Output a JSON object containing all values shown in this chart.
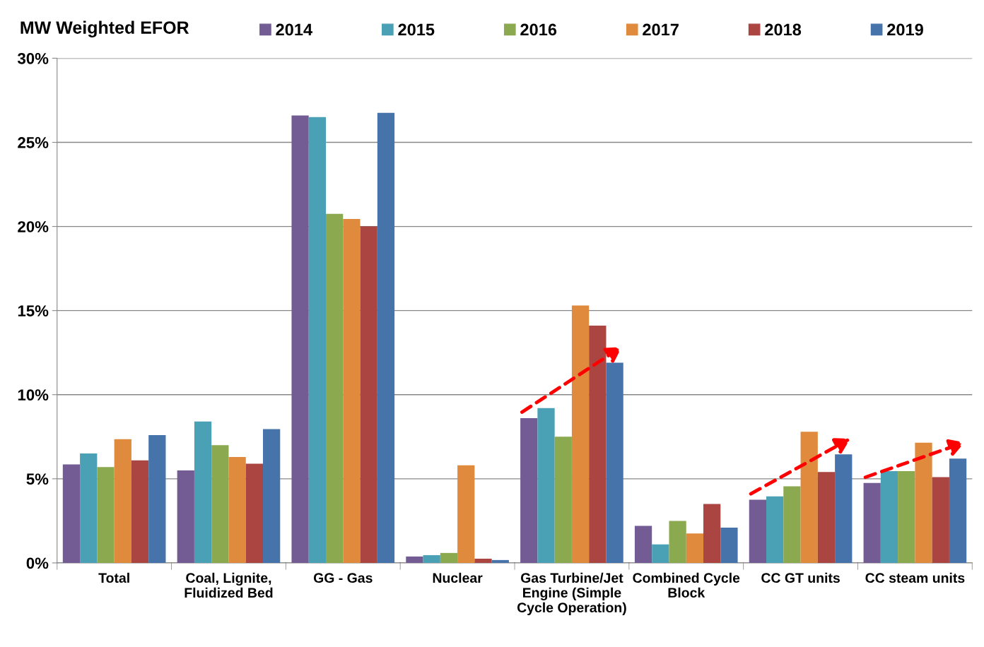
{
  "chart_data": {
    "type": "bar",
    "title": "MW Weighted EFOR",
    "categories": [
      "Total",
      "Coal, Lignite,\nFluidized Bed",
      "GG - Gas",
      "Nuclear",
      "Gas Turbine/Jet\nEngine (Simple\nCycle Operation)",
      "Combined Cycle\nBlock",
      "CC GT units",
      "CC steam units"
    ],
    "series": [
      {
        "name": "2014",
        "color": "#725c93",
        "values": [
          5.85,
          5.5,
          26.6,
          0.38,
          8.6,
          2.2,
          3.75,
          4.75
        ]
      },
      {
        "name": "2015",
        "color": "#4aa0b5",
        "values": [
          6.5,
          8.4,
          26.5,
          0.46,
          9.2,
          1.1,
          3.95,
          5.45
        ]
      },
      {
        "name": "2016",
        "color": "#8ba94e",
        "values": [
          5.7,
          7.0,
          20.75,
          0.59,
          7.5,
          2.5,
          4.55,
          5.45
        ]
      },
      {
        "name": "2017",
        "color": "#e08a3e",
        "values": [
          7.35,
          6.3,
          20.45,
          5.8,
          15.3,
          1.75,
          7.8,
          7.15
        ]
      },
      {
        "name": "2018",
        "color": "#ab4542",
        "values": [
          6.1,
          5.9,
          20.0,
          0.25,
          14.1,
          3.5,
          5.4,
          5.1
        ]
      },
      {
        "name": "2019",
        "color": "#4673aa",
        "values": [
          7.6,
          7.95,
          26.75,
          0.17,
          11.9,
          2.1,
          6.45,
          6.2
        ]
      }
    ],
    "ylim": [
      0,
      30
    ],
    "yticks": [
      {
        "value": 0,
        "label": "0%"
      },
      {
        "value": 5,
        "label": "5%"
      },
      {
        "value": 10,
        "label": "10%"
      },
      {
        "value": 15,
        "label": "15%"
      },
      {
        "value": 20,
        "label": "20%"
      },
      {
        "value": 25,
        "label": "25%"
      },
      {
        "value": 30,
        "label": "30%"
      }
    ],
    "grid": "y",
    "legend": "top"
  }
}
